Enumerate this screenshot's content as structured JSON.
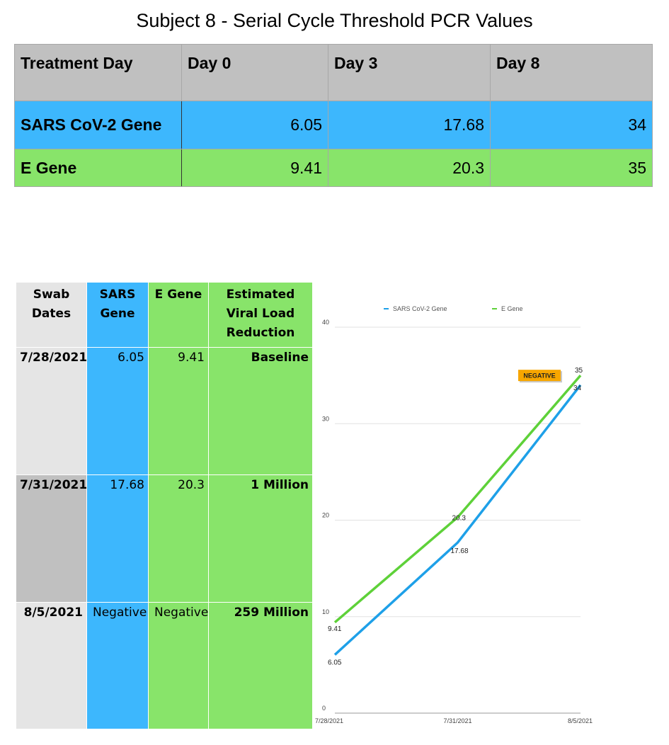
{
  "title": "Subject 8 - Serial Cycle Threshold PCR Values",
  "summary_table": {
    "headers": [
      "Treatment Day",
      "Day 0",
      "Day 3",
      "Day 8"
    ],
    "rows": [
      {
        "label": "SARS CoV-2 Gene",
        "values": [
          "6.05",
          "17.68",
          "34"
        ]
      },
      {
        "label": "E Gene",
        "values": [
          "9.41",
          "20.3",
          "35"
        ]
      }
    ]
  },
  "swab_table": {
    "headers": [
      "Swab Dates",
      "SARS Gene",
      "E Gene",
      "Estimated Viral Load Reduction"
    ],
    "rows": [
      {
        "date": "7/28/2021",
        "sars": "6.05",
        "egene": "9.41",
        "reduction": "Baseline"
      },
      {
        "date": "7/31/2021",
        "sars": "17.68",
        "egene": "20.3",
        "reduction": "1 Million"
      },
      {
        "date": "8/5/2021",
        "sars": "Negative",
        "egene": "Negative",
        "reduction": "259 Million"
      }
    ]
  },
  "colors": {
    "sars": "#1ea0e8",
    "egene": "#5ed139",
    "negative_badge": "#f7a600"
  },
  "chart_data": {
    "type": "line",
    "categories": [
      "7/28/2021",
      "7/31/2021",
      "8/5/2021"
    ],
    "series": [
      {
        "name": "SARS CoV-2 Gene",
        "values": [
          6.05,
          17.68,
          34
        ],
        "labels": [
          "6.05",
          "17.68",
          "34"
        ]
      },
      {
        "name": "E Gene",
        "values": [
          9.41,
          20.3,
          35
        ],
        "labels": [
          "9.41",
          "20.3",
          "35"
        ]
      }
    ],
    "yticks": [
      "0",
      "10",
      "20",
      "30",
      "40"
    ],
    "ylim": [
      0,
      40
    ],
    "grid": true,
    "legend": "top",
    "annotation": "NEGATIVE"
  }
}
